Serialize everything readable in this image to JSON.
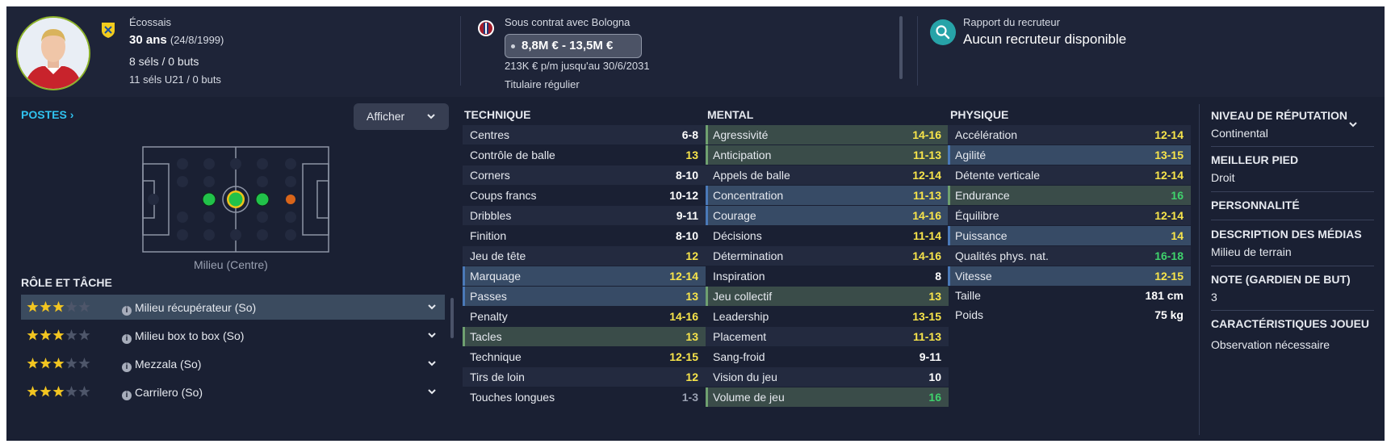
{
  "header": {
    "nationality": "Écossais",
    "age": "30 ans",
    "dob": "(24/8/1999)",
    "caps": "8 séls / 0 buts",
    "u21_caps": "11 séls U21 / 0 buts",
    "contract": "Sous contrat avec Bologna",
    "value_range": "8,8M € - 13,5M €",
    "wage": "213K € p/m jusqu'au 30/6/2031",
    "squad_status": "Titulaire régulier",
    "scout_title": "Rapport du recruteur",
    "scout_value": "Aucun recruteur disponible"
  },
  "positions": {
    "title": "POSTES",
    "show_button": "Afficher",
    "position_label": "Milieu (Centre)"
  },
  "roles": {
    "title": "RÔLE ET TÂCHE",
    "items": [
      {
        "name": "Milieu récupérateur (So)",
        "stars": 3
      },
      {
        "name": "Milieu box to box (So)",
        "stars": 3
      },
      {
        "name": "Mezzala (So)",
        "stars": 3
      },
      {
        "name": "Carrilero (So)",
        "stars": 3
      }
    ]
  },
  "technique": {
    "title": "TECHNIQUE",
    "attrs": [
      {
        "name": "Centres",
        "value": "6-8",
        "color": "white"
      },
      {
        "name": "Contrôle de balle",
        "value": "13",
        "color": "yellow"
      },
      {
        "name": "Corners",
        "value": "8-10",
        "color": "white"
      },
      {
        "name": "Coups francs",
        "value": "10-12",
        "color": "white"
      },
      {
        "name": "Dribbles",
        "value": "9-11",
        "color": "white"
      },
      {
        "name": "Finition",
        "value": "8-10",
        "color": "white"
      },
      {
        "name": "Jeu de tête",
        "value": "12",
        "color": "yellow"
      },
      {
        "name": "Marquage",
        "value": "12-14",
        "color": "yellow",
        "hl": "blue"
      },
      {
        "name": "Passes",
        "value": "13",
        "color": "yellow",
        "hl": "blue"
      },
      {
        "name": "Penalty",
        "value": "14-16",
        "color": "yellow"
      },
      {
        "name": "Tacles",
        "value": "13",
        "color": "yellow",
        "hl": "green"
      },
      {
        "name": "Technique",
        "value": "12-15",
        "color": "yellow"
      },
      {
        "name": "Tirs de loin",
        "value": "12",
        "color": "yellow"
      },
      {
        "name": "Touches longues",
        "value": "1-3",
        "color": "grey"
      }
    ]
  },
  "mental": {
    "title": "MENTAL",
    "attrs": [
      {
        "name": "Agressivité",
        "value": "14-16",
        "color": "yellow",
        "hl": "green"
      },
      {
        "name": "Anticipation",
        "value": "11-13",
        "color": "yellow",
        "hl": "green"
      },
      {
        "name": "Appels de balle",
        "value": "12-14",
        "color": "yellow"
      },
      {
        "name": "Concentration",
        "value": "11-13",
        "color": "yellow",
        "hl": "blue"
      },
      {
        "name": "Courage",
        "value": "14-16",
        "color": "yellow",
        "hl": "blue"
      },
      {
        "name": "Décisions",
        "value": "11-14",
        "color": "yellow"
      },
      {
        "name": "Détermination",
        "value": "14-16",
        "color": "yellow"
      },
      {
        "name": "Inspiration",
        "value": "8",
        "color": "white"
      },
      {
        "name": "Jeu collectif",
        "value": "13",
        "color": "yellow",
        "hl": "green"
      },
      {
        "name": "Leadership",
        "value": "13-15",
        "color": "yellow"
      },
      {
        "name": "Placement",
        "value": "11-13",
        "color": "yellow"
      },
      {
        "name": "Sang-froid",
        "value": "9-11",
        "color": "white"
      },
      {
        "name": "Vision du jeu",
        "value": "10",
        "color": "white"
      },
      {
        "name": "Volume de jeu",
        "value": "16",
        "color": "green",
        "hl": "green"
      }
    ]
  },
  "physique": {
    "title": "PHYSIQUE",
    "attrs": [
      {
        "name": "Accélération",
        "value": "12-14",
        "color": "yellow"
      },
      {
        "name": "Agilité",
        "value": "13-15",
        "color": "yellow",
        "hl": "blue"
      },
      {
        "name": "Détente verticale",
        "value": "12-14",
        "color": "yellow"
      },
      {
        "name": "Endurance",
        "value": "16",
        "color": "green",
        "hl": "green"
      },
      {
        "name": "Équilibre",
        "value": "12-14",
        "color": "yellow"
      },
      {
        "name": "Puissance",
        "value": "14",
        "color": "yellow",
        "hl": "blue"
      },
      {
        "name": "Qualités phys. nat.",
        "value": "16-18",
        "color": "green"
      },
      {
        "name": "Vitesse",
        "value": "12-15",
        "color": "yellow",
        "hl": "blue"
      }
    ],
    "height_label": "Taille",
    "height_value": "181 cm",
    "weight_label": "Poids",
    "weight_value": "75 kg"
  },
  "info": {
    "reputation_title": "NIVEAU DE RÉPUTATION",
    "reputation_value": "Continental",
    "foot_title": "MEILLEUR PIED",
    "foot_value": "Droit",
    "personality_title": "PERSONNALITÉ",
    "media_title": "DESCRIPTION DES MÉDIAS",
    "media_value": "Milieu de terrain",
    "gk_title": "NOTE (GARDIEN DE BUT)",
    "gk_value": "3",
    "traits_title": "CARACTÉRISTIQUES JOUEU",
    "traits_value": "Observation nécessaire"
  },
  "colors": {
    "white": "#ffffff",
    "yellow": "#f7e44a",
    "green": "#3fd26c",
    "grey": "#9aa1b2"
  }
}
